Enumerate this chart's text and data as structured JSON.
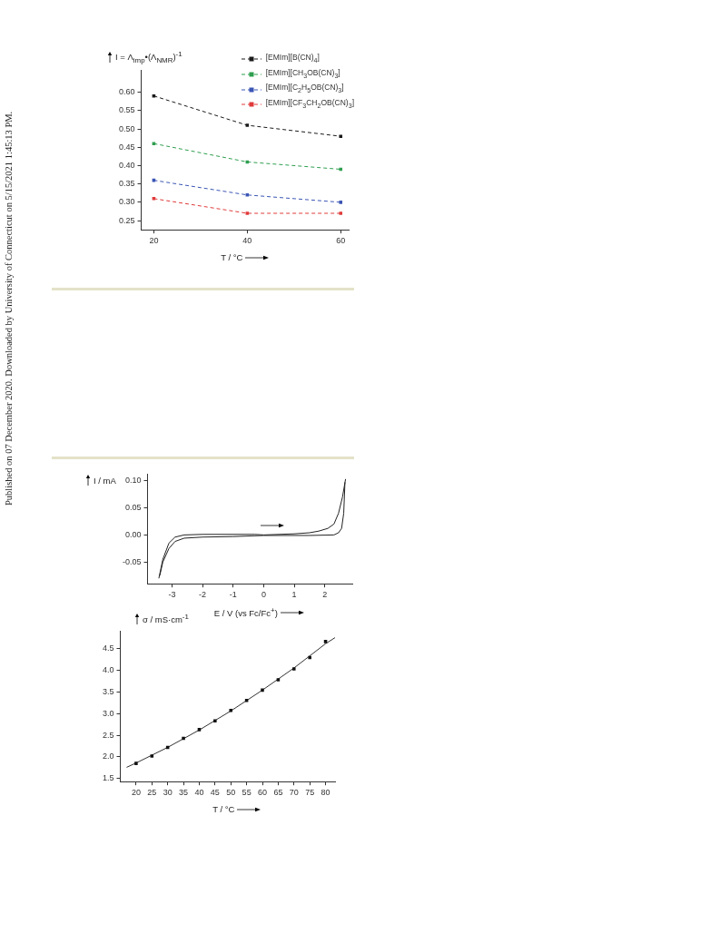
{
  "chart_data": [
    {
      "type": "line",
      "xlabel": "T / °C",
      "ylabel": "I = Λ$_{imp}$•(Λ$_{NMR}$)$^{-1}$",
      "x": [
        20,
        40,
        60
      ],
      "xlim": [
        17.3,
        61.7
      ],
      "xticks": [
        20,
        40,
        60
      ],
      "ylim": [
        0.225,
        0.66
      ],
      "yticks": [
        {
          "value": 0.25,
          "label": "0.25"
        },
        {
          "value": 0.3,
          "label": "0.30"
        },
        {
          "value": 0.35,
          "label": "0.35"
        },
        {
          "value": 0.4,
          "label": "0.40"
        },
        {
          "value": 0.45,
          "label": "0.45"
        },
        {
          "value": 0.5,
          "label": "0.50"
        },
        {
          "value": 0.55,
          "label": "0.55"
        },
        {
          "value": 0.6,
          "label": "0.60"
        }
      ],
      "grid": false,
      "legend": "top right",
      "marker": "square",
      "line_style": "dashed",
      "annotations": [
        "Published on 07 December 2020. Downloaded by University of Connecticut on 5/15/2021 1:45:13 PM."
      ],
      "series": [
        {
          "name": "[EMIm][B(CN)$_{4}$]",
          "color": "#1a1a1a",
          "values": [
            0.59,
            0.51,
            0.48
          ]
        },
        {
          "name": "[EMIm][CH$_{3}$OB(CN)$_{3}$]",
          "color": "#2e9e4f",
          "values": [
            0.46,
            0.41,
            0.39
          ]
        },
        {
          "name": "[EMIm][C$_{2}$H$_{5}$OB(CN)$_{3}$]",
          "color": "#3a55b4",
          "values": [
            0.36,
            0.32,
            0.3
          ]
        },
        {
          "name": "[EMIm][CF$_{3}$CH$_{2}$OB(CN)$_{3}$]",
          "color": "#e03a3a",
          "values": [
            0.31,
            0.27,
            0.27
          ]
        }
      ]
    },
    {
      "type": "line",
      "xlabel": "E / V (vs Fc/Fc$^{+}$)",
      "ylabel": "I / mA",
      "xlim": [
        -3.8,
        2.9
      ],
      "xticks": [
        -3,
        -2,
        -1,
        0,
        1,
        2
      ],
      "ylim": [
        -0.09,
        0.112
      ],
      "yticks": [
        {
          "value": -0.05,
          "label": "-0.05"
        },
        {
          "value": 0,
          "label": "0.00"
        },
        {
          "value": 0.05,
          "label": "0.05"
        },
        {
          "value": 0.1,
          "label": "0.10"
        }
      ],
      "grid": false,
      "marker": "none",
      "line_style": "solid",
      "series": [
        {
          "color": "#222222",
          "x": [
            -3.43,
            -3.3,
            -3.1,
            -2.9,
            -2.6,
            -2,
            -0.3,
            0,
            1,
            1.5,
            1.8,
            2.1,
            2.3,
            2.45,
            2.58,
            2.68
          ],
          "values": [
            -0.08,
            -0.045,
            -0.015,
            -0.004,
            0,
            0.001,
            0.001,
            0,
            0.002,
            0.004,
            0.007,
            0.012,
            0.02,
            0.04,
            0.07,
            0.103
          ]
        },
        {
          "color": "#222222",
          "x": [
            -3.4,
            -3.3,
            -3.1,
            -2.9,
            -2.6,
            -2,
            -1,
            0,
            1.5,
            2.3,
            2.45,
            2.55,
            2.62,
            2.66
          ],
          "values": [
            -0.075,
            -0.05,
            -0.025,
            -0.012,
            -0.006,
            -0.004,
            -0.003,
            -0.001,
            -0.001,
            0,
            0.004,
            0.012,
            0.04,
            0.097
          ]
        }
      ]
    },
    {
      "type": "scatter",
      "xlabel": "T / °C",
      "ylabel": "σ / mS·cm$^{-1}$",
      "xlim": [
        15,
        83
      ],
      "xticks": [
        20,
        25,
        30,
        35,
        40,
        45,
        50,
        55,
        60,
        65,
        70,
        75,
        80
      ],
      "ylim": [
        1.43,
        4.9
      ],
      "yticks": [
        {
          "value": 1.5,
          "label": "1.5"
        },
        {
          "value": 2,
          "label": "2.0"
        },
        {
          "value": 2.5,
          "label": "2.5"
        },
        {
          "value": 3,
          "label": "3.0"
        },
        {
          "value": 3.5,
          "label": "3.5"
        },
        {
          "value": 4,
          "label": "4.0"
        },
        {
          "value": 4.5,
          "label": "4.5"
        }
      ],
      "grid": false,
      "marker": "square",
      "series": [
        {
          "color": "#111111",
          "x": [
            20,
            25,
            30,
            35,
            40,
            45,
            50,
            55,
            60,
            65,
            70,
            75,
            80
          ],
          "values": [
            1.85,
            2.02,
            2.22,
            2.43,
            2.63,
            2.83,
            3.07,
            3.3,
            3.54,
            3.78,
            4.03,
            4.29,
            4.66
          ]
        },
        {
          "type": "line",
          "marker": "none",
          "line_style": "solid",
          "color": "#333333",
          "x": [
            17,
            20,
            30,
            40,
            50,
            60,
            70,
            80,
            83
          ],
          "values": [
            1.76,
            1.86,
            2.22,
            2.62,
            3.06,
            3.54,
            4.05,
            4.61,
            4.75
          ]
        }
      ]
    }
  ]
}
